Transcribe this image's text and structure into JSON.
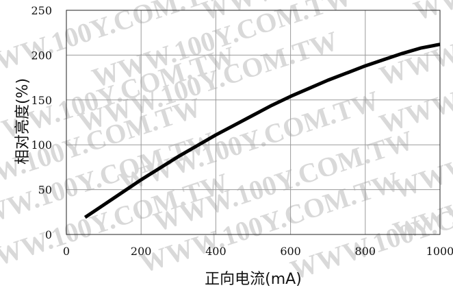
{
  "watermark": "WWW.100Y.COM.TW",
  "chart_data": {
    "type": "line",
    "xlabel": "正向电流(mA)",
    "ylabel": "相对亮度(%)",
    "xlim": [
      0,
      1000
    ],
    "ylim": [
      0,
      250
    ],
    "xticks": [
      0,
      200,
      400,
      600,
      800,
      1000
    ],
    "yticks": [
      0,
      50,
      100,
      150,
      200,
      250
    ],
    "x_tick_labels": [
      "0",
      "200",
      "400",
      "600",
      "800",
      "1000"
    ],
    "y_tick_labels": [
      "0",
      "50",
      "100",
      "150",
      "200",
      "250"
    ],
    "grid": true,
    "series": [
      {
        "color": "#000000",
        "x": [
          50,
          100,
          150,
          200,
          250,
          300,
          350,
          400,
          450,
          500,
          550,
          600,
          650,
          700,
          750,
          800,
          850,
          900,
          950,
          1000
        ],
        "y": [
          19,
          33,
          47,
          61,
          74,
          87,
          99,
          111,
          122,
          133,
          144,
          154,
          163,
          172,
          180,
          188,
          195,
          202,
          208,
          212
        ]
      }
    ]
  }
}
